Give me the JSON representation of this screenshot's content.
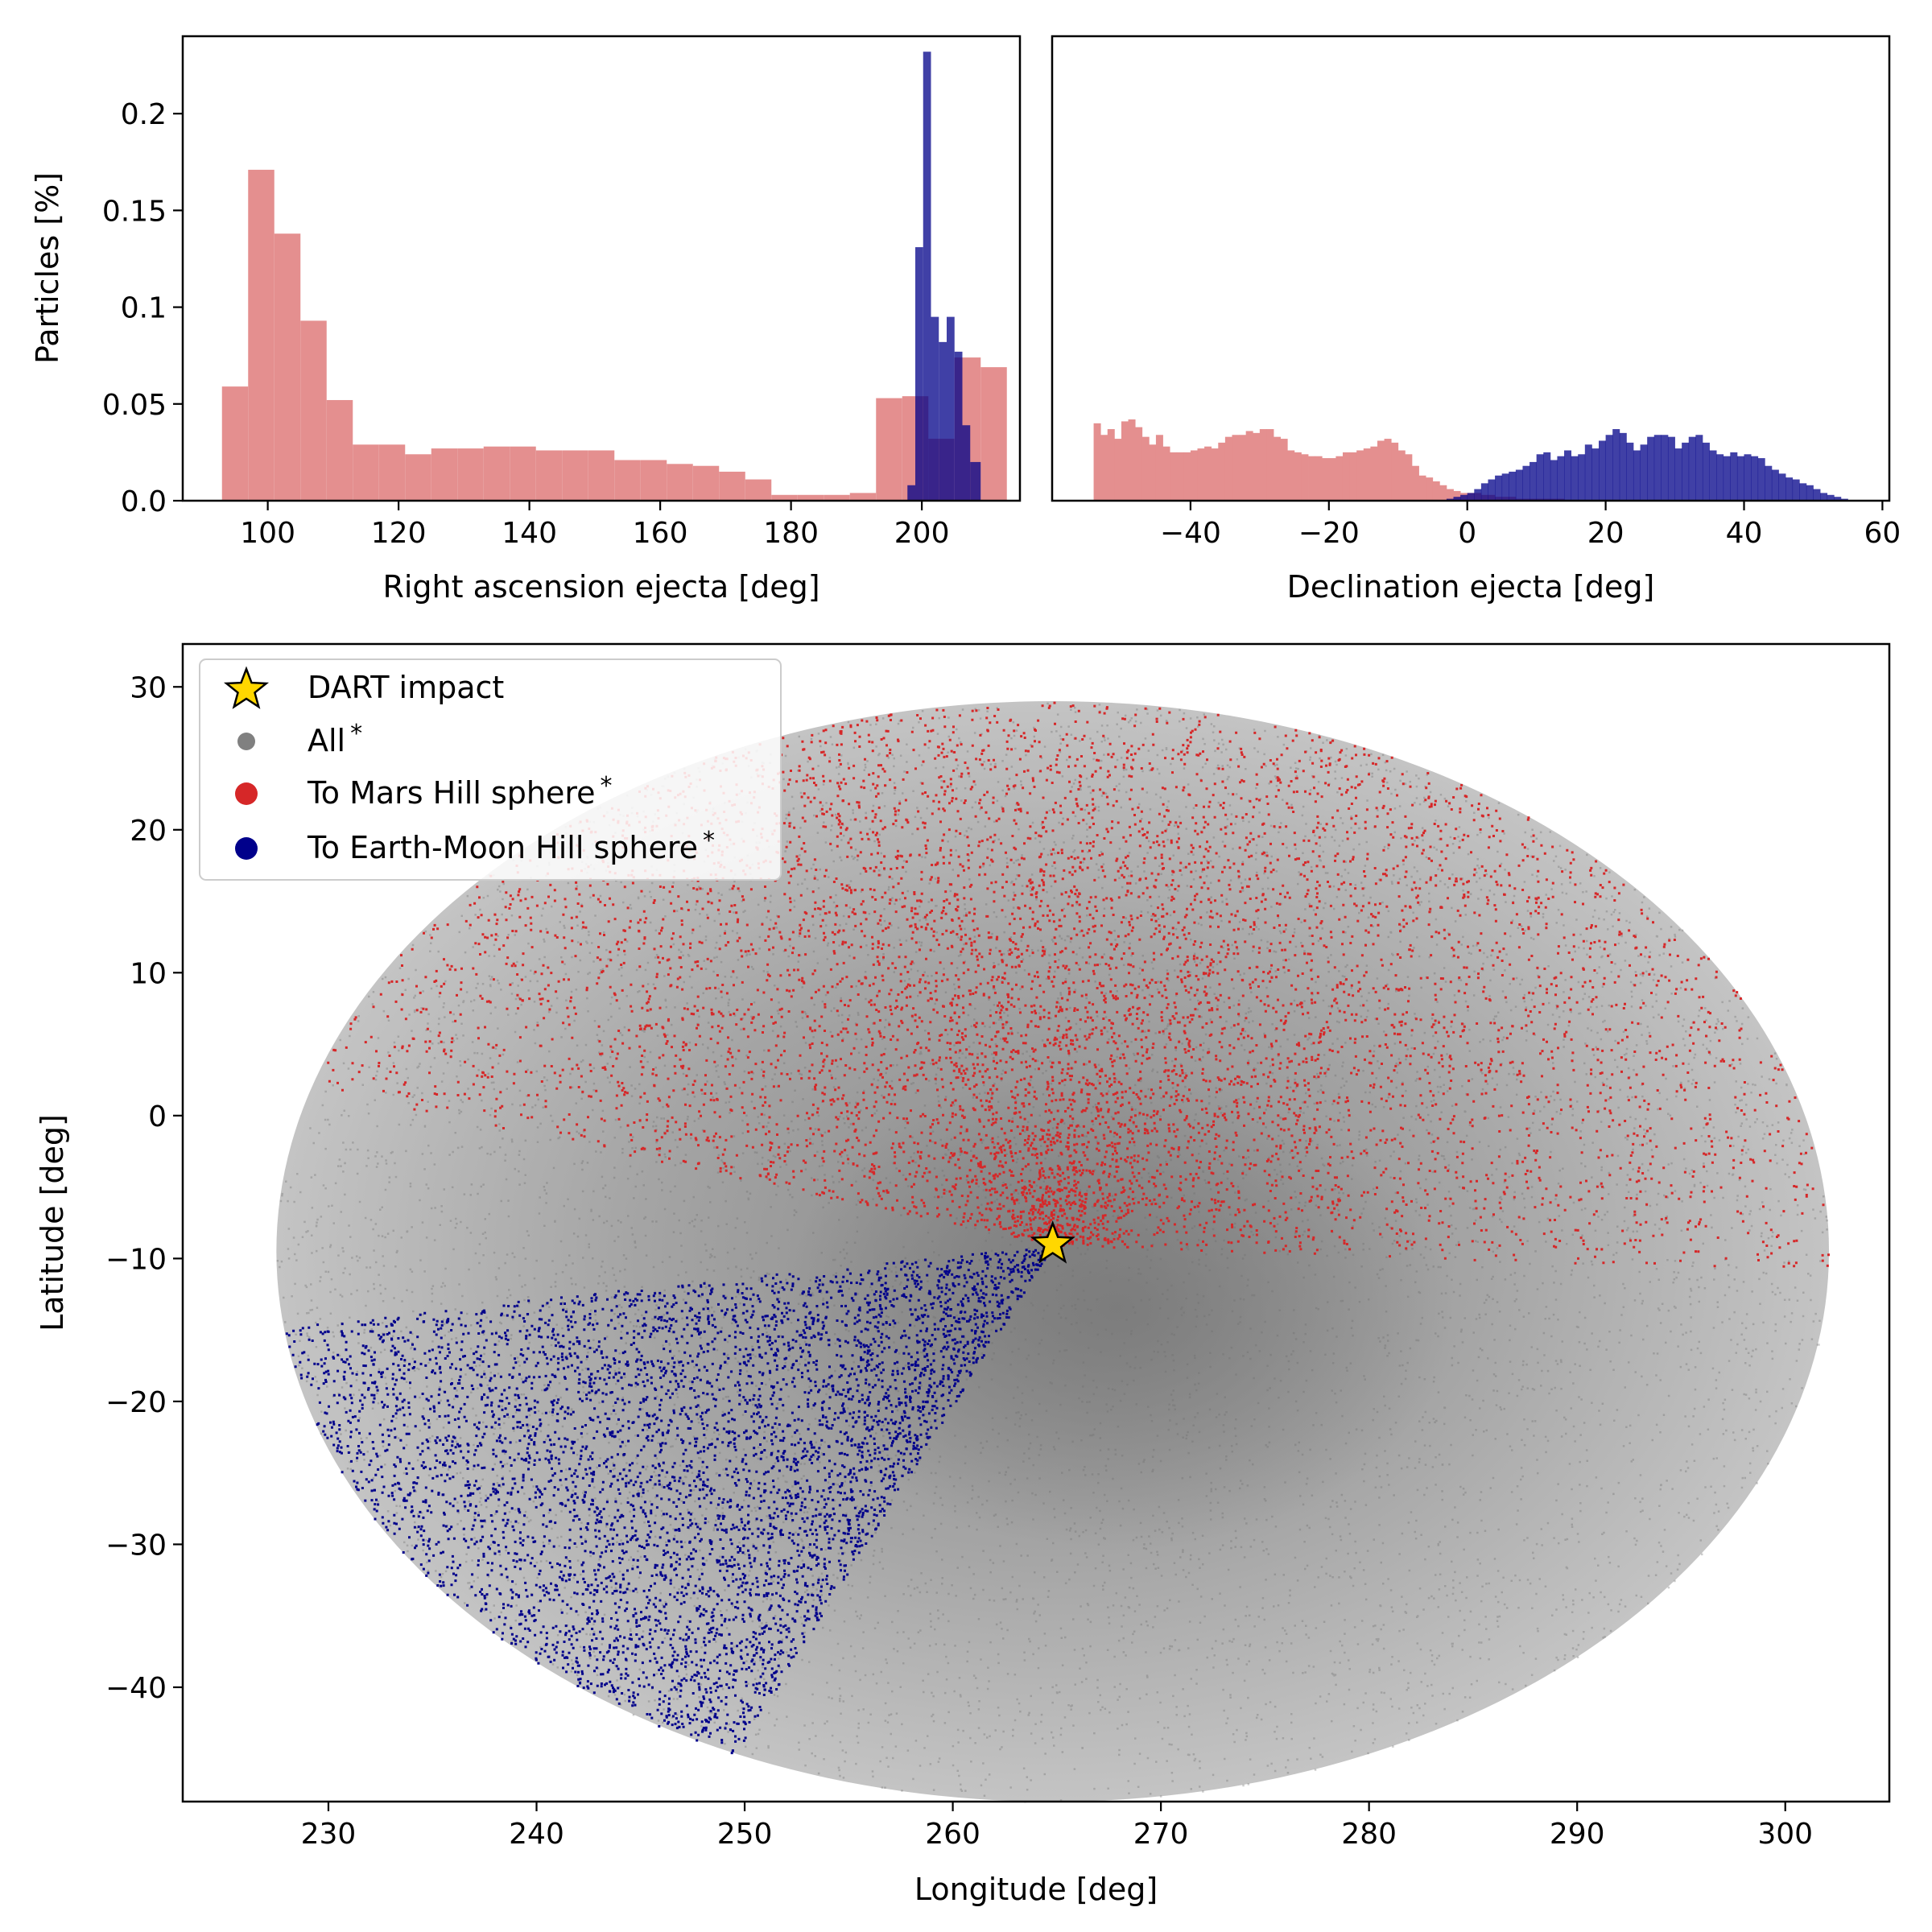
{
  "chart_data": [
    {
      "type": "histogram",
      "id": "ra-hist",
      "xlabel": "Right ascension ejecta [deg]",
      "ylabel": "Particles [%]",
      "xlim": [
        87,
        215
      ],
      "ylim": [
        0,
        0.24
      ],
      "xticks": [
        "100",
        "120",
        "140",
        "160",
        "180",
        "200"
      ],
      "yticks": [
        "0.0",
        "0.05",
        "0.1",
        "0.15",
        "0.2"
      ],
      "series": [
        {
          "name": "To Mars Hill sphere",
          "color": "#e48f8f",
          "bins": [
            [
              93,
              97,
              0.059
            ],
            [
              97,
              101,
              0.171
            ],
            [
              101,
              105,
              0.138
            ],
            [
              105,
              109,
              0.093
            ],
            [
              109,
              113,
              0.052
            ],
            [
              113,
              117,
              0.029
            ],
            [
              117,
              121,
              0.029
            ],
            [
              121,
              125,
              0.024
            ],
            [
              125,
              129,
              0.027
            ],
            [
              129,
              133,
              0.027
            ],
            [
              133,
              137,
              0.028
            ],
            [
              137,
              141,
              0.028
            ],
            [
              141,
              145,
              0.026
            ],
            [
              145,
              149,
              0.026
            ],
            [
              149,
              153,
              0.026
            ],
            [
              153,
              157,
              0.021
            ],
            [
              157,
              161,
              0.021
            ],
            [
              161,
              165,
              0.019
            ],
            [
              165,
              169,
              0.018
            ],
            [
              169,
              173,
              0.015
            ],
            [
              173,
              177,
              0.011
            ],
            [
              177,
              181,
              0.003
            ],
            [
              181,
              185,
              0.003
            ],
            [
              185,
              189,
              0.003
            ],
            [
              189,
              193,
              0.004
            ],
            [
              193,
              197,
              0.053
            ],
            [
              197,
              201,
              0.054
            ],
            [
              201,
              205,
              0.032
            ],
            [
              205,
              209,
              0.074
            ],
            [
              209,
              213,
              0.069
            ]
          ]
        },
        {
          "name": "To Earth-Moon Hill sphere",
          "color": "#000088",
          "bins": [
            [
              197.8,
              199.0,
              0.008
            ],
            [
              199.0,
              200.2,
              0.131
            ],
            [
              200.2,
              201.4,
              0.232
            ],
            [
              201.4,
              202.6,
              0.095
            ],
            [
              202.6,
              203.8,
              0.082
            ],
            [
              203.8,
              205.0,
              0.095
            ],
            [
              205.0,
              206.2,
              0.077
            ],
            [
              206.2,
              207.4,
              0.039
            ],
            [
              207.4,
              209.0,
              0.02
            ]
          ]
        }
      ]
    },
    {
      "type": "histogram",
      "id": "dec-hist",
      "xlabel": "Declination ejecta [deg]",
      "ylabel": "",
      "xlim": [
        -60,
        61
      ],
      "ylim": [
        0,
        0.24
      ],
      "xticks": [
        "−40",
        "−20",
        "0",
        "20",
        "40",
        "60"
      ],
      "series": [
        {
          "name": "To Mars Hill sphere",
          "color": "#e48f8f",
          "range": [
            -54,
            14
          ],
          "values": [
            0.04,
            0.034,
            0.037,
            0.032,
            0.041,
            0.042,
            0.038,
            0.033,
            0.029,
            0.034,
            0.028,
            0.025,
            0.025,
            0.025,
            0.026,
            0.027,
            0.028,
            0.027,
            0.03,
            0.033,
            0.034,
            0.034,
            0.036,
            0.035,
            0.037,
            0.037,
            0.033,
            0.032,
            0.026,
            0.025,
            0.024,
            0.023,
            0.023,
            0.022,
            0.022,
            0.023,
            0.025,
            0.025,
            0.026,
            0.027,
            0.028,
            0.031,
            0.032,
            0.03,
            0.026,
            0.024,
            0.018,
            0.013,
            0.012,
            0.01,
            0.008,
            0.006,
            0.005,
            0.004,
            0.004,
            0.004,
            0.003,
            0.003,
            0.002,
            0.002,
            0.002,
            0.001,
            0.001,
            0.001,
            0.001,
            0.001,
            0.001,
            0.001
          ]
        },
        {
          "name": "To Earth-Moon Hill sphere",
          "color": "#000088",
          "range": [
            -3,
            55
          ],
          "values": [
            0.001,
            0.002,
            0.003,
            0.004,
            0.006,
            0.009,
            0.011,
            0.013,
            0.014,
            0.015,
            0.016,
            0.018,
            0.02,
            0.024,
            0.025,
            0.021,
            0.023,
            0.026,
            0.023,
            0.024,
            0.029,
            0.027,
            0.031,
            0.034,
            0.037,
            0.035,
            0.03,
            0.026,
            0.029,
            0.033,
            0.034,
            0.034,
            0.033,
            0.027,
            0.03,
            0.033,
            0.034,
            0.03,
            0.026,
            0.024,
            0.023,
            0.025,
            0.023,
            0.024,
            0.023,
            0.022,
            0.018,
            0.016,
            0.014,
            0.012,
            0.011,
            0.009,
            0.008,
            0.006,
            0.004,
            0.003,
            0.002,
            0.001
          ]
        }
      ]
    },
    {
      "type": "scatter",
      "id": "sky-map",
      "xlabel": "Longitude [deg]",
      "ylabel": "Latitude [deg]",
      "xlim": [
        223,
        305
      ],
      "ylim": [
        -48,
        33
      ],
      "xticks": [
        "230",
        "240",
        "250",
        "260",
        "270",
        "280",
        "290",
        "300"
      ],
      "yticks": [
        "30",
        "20",
        "10",
        "0",
        "−10",
        "−20",
        "−30",
        "−40"
      ],
      "ellipse": {
        "center_lon": 264.8,
        "center_lat": -9.5,
        "half_width_lon": 37.3,
        "half_height_lat": 38.5
      },
      "impact": {
        "lon": 264.8,
        "lat": -9.0
      },
      "series": [
        {
          "name": "All",
          "color": "#808080"
        },
        {
          "name": "To Mars Hill sphere",
          "color": "#d62728"
        },
        {
          "name": "To Earth-Moon Hill sphere",
          "color": "#00008b"
        }
      ]
    }
  ],
  "legend": {
    "items": [
      {
        "label": "DART impact",
        "marker": "star",
        "color": "#ffd700"
      },
      {
        "label": "All",
        "marker": "dot",
        "color": "#808080",
        "note": "*"
      },
      {
        "label": "To Mars Hill sphere",
        "marker": "dot",
        "color": "#d62728",
        "note": "*"
      },
      {
        "label": "To Earth-Moon Hill sphere",
        "marker": "dot",
        "color": "#00008b",
        "note": "*"
      }
    ]
  }
}
